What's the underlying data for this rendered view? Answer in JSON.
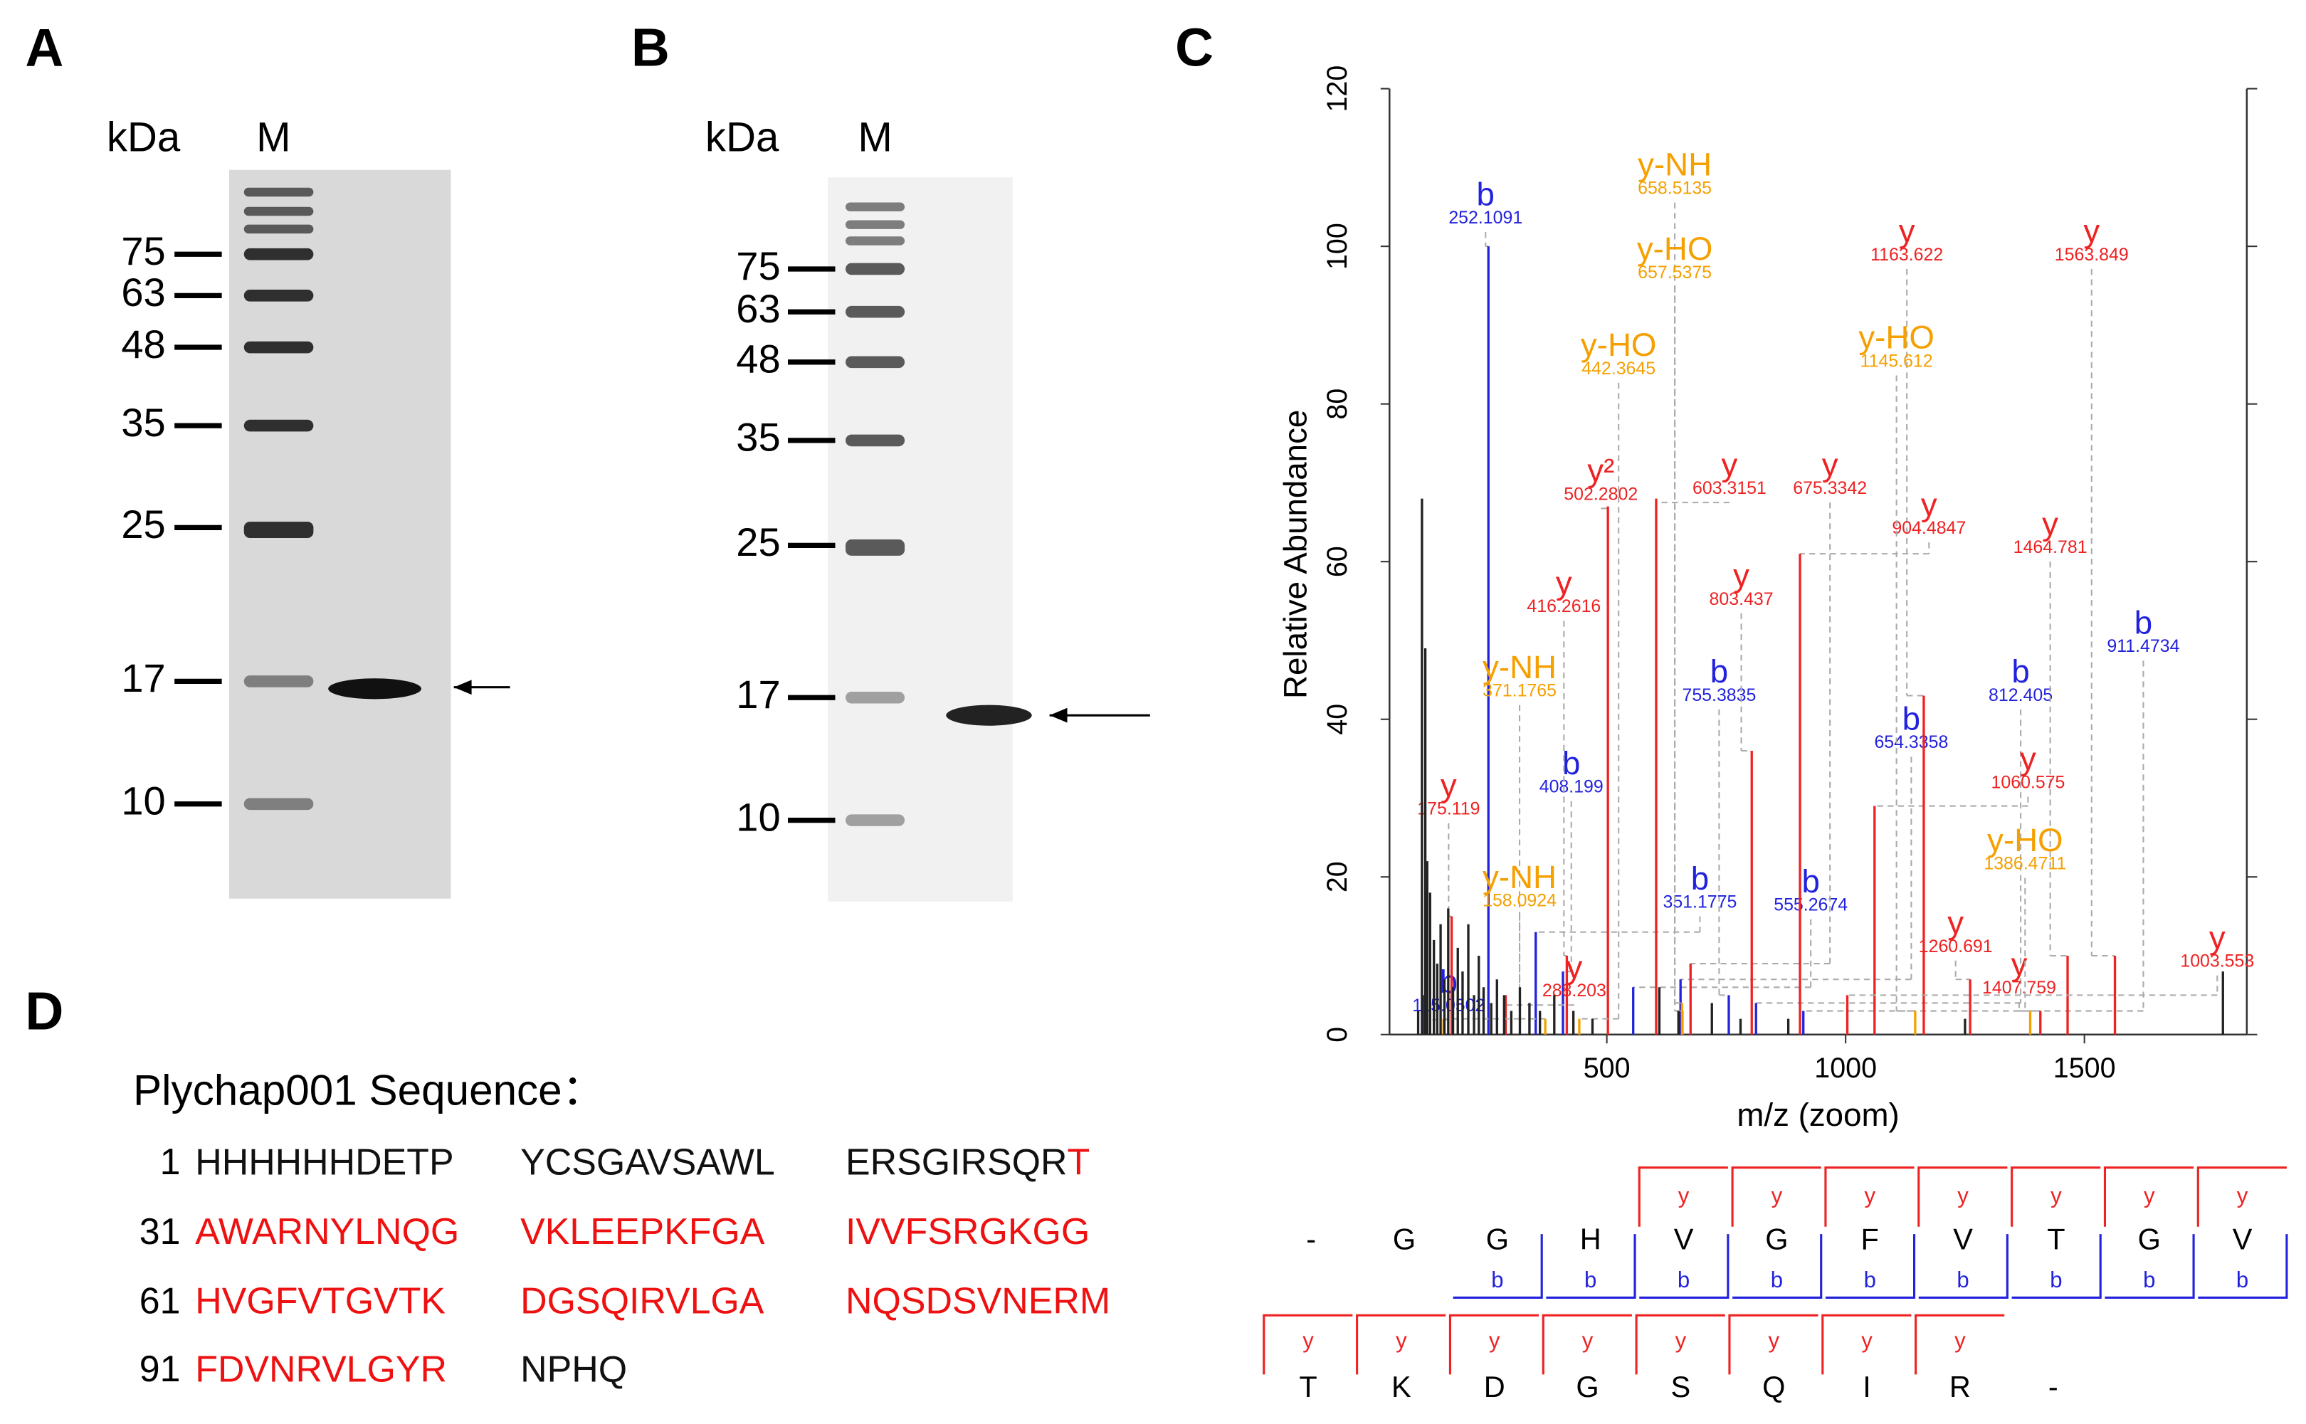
{
  "panel_labels": [
    "A",
    "B",
    "C",
    "D"
  ],
  "gel_a": {
    "unit": "kDa",
    "lane": "M",
    "markers": [
      "75",
      "63",
      "48",
      "35",
      "25",
      "17",
      "10"
    ]
  },
  "gel_b": {
    "unit": "kDa",
    "lane": "M",
    "markers": [
      "75",
      "63",
      "48",
      "35",
      "25",
      "17",
      "10"
    ]
  },
  "chart_data": {
    "type": "spectrum",
    "x_label": "m/z (zoom)",
    "y_label": "Relative Abundance",
    "xlim": [
      45,
      1840
    ],
    "xticks": [
      500,
      1000,
      1500
    ],
    "ylim": [
      0,
      120
    ],
    "yticks": [
      0,
      20,
      40,
      60,
      80,
      100,
      120
    ],
    "series": [
      {
        "color": "#2222dd",
        "x": [
          115.0502,
          252.1091,
          351.1775,
          408.199,
          555.2674,
          654.3358,
          755.3835,
          812.405,
          911.4734
        ],
        "values": [
          5,
          100,
          13,
          8,
          6,
          7,
          5,
          4,
          3
        ],
        "ion_labels": [
          "b",
          "b",
          "b",
          "b",
          "b",
          "b",
          "b",
          "b",
          "b"
        ]
      },
      {
        "color": "#ee2222",
        "x": [
          175.119,
          288.203,
          416.2616,
          502.2802,
          603.3151,
          675.3342,
          803.437,
          904.4847,
          1060.575,
          1163.622,
          1260.691,
          1407.759,
          1464.781,
          1563.849,
          1003.553
        ],
        "values": [
          15,
          5,
          10,
          67,
          68,
          9,
          36,
          61,
          29,
          43,
          7,
          3,
          10,
          10,
          5
        ],
        "ion_labels": [
          "y",
          "y",
          "y",
          "y²",
          "y",
          "y",
          "y",
          "y",
          "y",
          "y",
          "y",
          "y",
          "y",
          "y",
          "y"
        ]
      },
      {
        "color": "#f5a000",
        "x": [
          658.5135,
          657.5375,
          442.3645,
          1145.612,
          371.1765,
          1386.4711,
          158.0924
        ],
        "values": [
          3,
          4,
          2,
          3,
          2,
          3,
          2
        ],
        "ion_labels": [
          "y-NH",
          "y-HO",
          "y-HO",
          "y-HO",
          "y-NH",
          "y-HO",
          "y-NH"
        ]
      },
      {
        "color": "#222222",
        "x": [
          105,
          113,
          120,
          124,
          130,
          138,
          145,
          152,
          160,
          168,
          178,
          188,
          198,
          210,
          222,
          232,
          242,
          258,
          270,
          285,
          300,
          318,
          338,
          360,
          390,
          430,
          470,
          610,
          650,
          720,
          780,
          880,
          1250,
          1790
        ],
        "values": [
          3,
          68,
          49,
          22,
          18,
          12,
          9,
          14,
          7,
          16,
          6,
          11,
          8,
          14,
          5,
          10,
          6,
          4,
          7,
          5,
          3,
          6,
          4,
          3,
          5,
          3,
          2,
          6,
          3,
          4,
          2,
          2,
          2,
          8
        ]
      }
    ]
  },
  "fragment_map": {
    "rows": [
      [
        {
          "aa": "-"
        },
        {
          "aa": "G"
        },
        {
          "aa": "G",
          "b": "b"
        },
        {
          "aa": "H",
          "b": "b"
        },
        {
          "aa": "V",
          "y": "y",
          "b": "b"
        },
        {
          "aa": "G",
          "y": "y",
          "b": "b"
        },
        {
          "aa": "F",
          "y": "y",
          "b": "b"
        },
        {
          "aa": "V",
          "y": "y",
          "b": "b"
        },
        {
          "aa": "T",
          "y": "y",
          "b": "b"
        },
        {
          "aa": "G",
          "y": "y",
          "b": "b"
        },
        {
          "aa": "V",
          "y": "y",
          "b": "b"
        }
      ],
      [
        {
          "aa": "T",
          "y": "y"
        },
        {
          "aa": "K",
          "y": "y"
        },
        {
          "aa": "D",
          "y": "y"
        },
        {
          "aa": "G",
          "y": "y"
        },
        {
          "aa": "S",
          "y": "y"
        },
        {
          "aa": "Q",
          "y": "y"
        },
        {
          "aa": "I",
          "y": "y"
        },
        {
          "aa": "R",
          "y": "y"
        },
        {
          "aa": "-"
        }
      ]
    ]
  },
  "sequence": {
    "title": "Plychap001 Sequence：",
    "rows": [
      {
        "number": "1",
        "groups": [
          [
            {
              "text": "HHHHHHDETP",
              "color": "#111111"
            }
          ],
          [
            {
              "text": "YCSGAVSAWL",
              "color": "#111111"
            }
          ],
          [
            {
              "text": "ERSGIRSQR",
              "color": "#111111"
            },
            {
              "text": "T",
              "color": "#ee1111"
            }
          ]
        ]
      },
      {
        "number": "31",
        "groups": [
          [
            {
              "text": "AWARNYLNQG",
              "color": "#ee1111"
            }
          ],
          [
            {
              "text": "VKLEEPKFGA",
              "color": "#ee1111"
            }
          ],
          [
            {
              "text": "IVVFSRGKGG",
              "color": "#ee1111"
            }
          ]
        ]
      },
      {
        "number": "61",
        "groups": [
          [
            {
              "text": "HVGFVTGVTK",
              "color": "#ee1111"
            }
          ],
          [
            {
              "text": "DGSQIRVLGA",
              "color": "#ee1111"
            }
          ],
          [
            {
              "text": "NQSDSVNERM",
              "color": "#ee1111"
            }
          ]
        ]
      },
      {
        "number": "91",
        "groups": [
          [
            {
              "text": "FDVNRVLGYR",
              "color": "#ee1111"
            }
          ],
          [
            {
              "text": "NPHQ",
              "color": "#111111"
            }
          ]
        ]
      }
    ]
  }
}
